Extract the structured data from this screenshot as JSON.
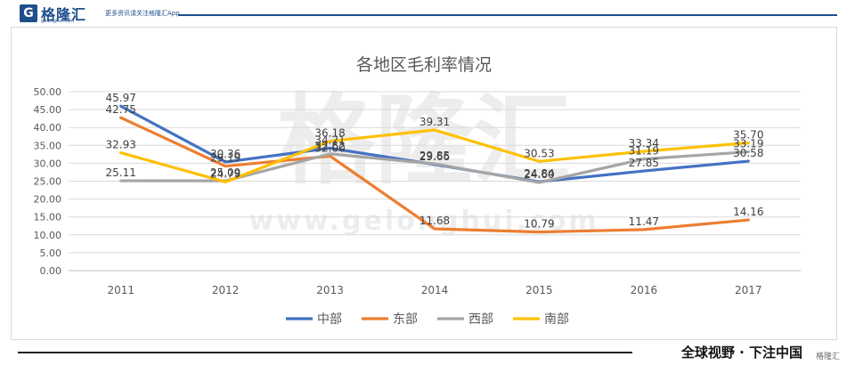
{
  "header": {
    "brand": "格隆汇",
    "brand_sub": "gelonghui.com",
    "tagline": "更多资讯请关注格隆汇App"
  },
  "footer": {
    "slogan": "全球视野 · 下注中国",
    "brand": "格隆汇"
  },
  "watermark": {
    "text": "格隆汇",
    "url": "www.gelonghui.com"
  },
  "colors": {
    "中部": "#4472c4",
    "东部": "#ed7d31",
    "西部": "#a5a5a5",
    "南部": "#ffc000"
  },
  "chart_data": {
    "type": "line",
    "title": "各地区毛利率情况",
    "xlabel": "",
    "ylabel": "",
    "categories": [
      "2011",
      "2012",
      "2013",
      "2014",
      "2015",
      "2016",
      "2017"
    ],
    "ylim": [
      0,
      50
    ],
    "yticks": [
      "0.00",
      "5.00",
      "10.00",
      "15.00",
      "20.00",
      "25.00",
      "30.00",
      "35.00",
      "40.00",
      "45.00",
      "50.00"
    ],
    "grid": true,
    "legend": "bottom",
    "series": [
      {
        "name": "中部",
        "values": [
          45.97,
          30.36,
          34.21,
          29.66,
          24.84,
          27.85,
          30.58
        ],
        "labels": [
          "45.97",
          "30.36",
          "34.21",
          "29.66",
          "24.84",
          "27.85",
          "30.58"
        ]
      },
      {
        "name": "东部",
        "values": [
          42.75,
          29.19,
          32.0,
          11.68,
          10.79,
          11.47,
          14.16
        ],
        "labels": [
          "42.75",
          "29.19",
          "32.00",
          "11.68",
          "10.79",
          "11.47",
          "14.16"
        ]
      },
      {
        "name": "西部",
        "values": [
          25.11,
          25.09,
          32.62,
          29.85,
          24.6,
          31.19,
          33.19
        ],
        "labels": [
          "25.11",
          "25.09",
          "32.62",
          "29.85",
          "24.60",
          "31.19",
          "33.19"
        ]
      },
      {
        "name": "南部",
        "values": [
          32.93,
          24.79,
          36.18,
          39.31,
          30.53,
          33.34,
          35.7
        ],
        "labels": [
          "32.93",
          "24.79",
          "36.18",
          "39.31",
          "30.53",
          "33.34",
          "35.70"
        ]
      }
    ]
  }
}
